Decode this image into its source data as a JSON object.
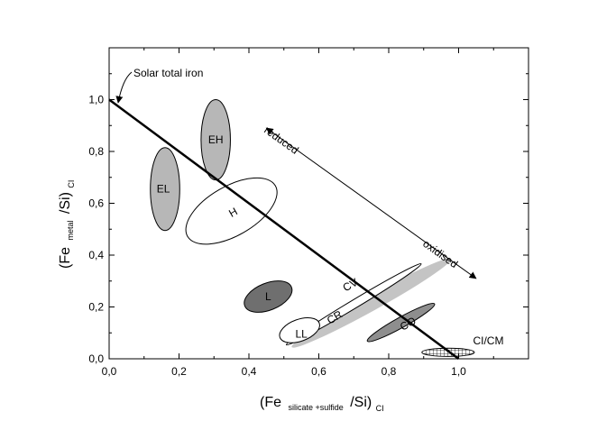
{
  "chart_data": {
    "type": "scatter",
    "xlabel": {
      "main": "(Fe",
      "sub": "silicate +sulfide",
      "mid": "/Si)",
      "tail": "CI"
    },
    "ylabel": {
      "main": "(Fe",
      "sub": "metal",
      "mid": "/Si)",
      "tail": "CI"
    },
    "xlim": [
      0.0,
      1.2
    ],
    "ylim": [
      0.0,
      1.2
    ],
    "x_ticks": [
      0.0,
      0.2,
      0.4,
      0.6,
      0.8,
      1.0
    ],
    "y_ticks": [
      0.0,
      0.2,
      0.4,
      0.6,
      0.8,
      1.0
    ],
    "x_tick_labels": [
      "0,0",
      "0,2",
      "0,4",
      "0,6",
      "0,8",
      "1,0"
    ],
    "y_tick_labels": [
      "0,0",
      "0,2",
      "0,4",
      "0,6",
      "0,8",
      "1,0"
    ],
    "grid": false,
    "reference_line": {
      "name": "Solar total iron",
      "from": [
        0.0,
        1.0
      ],
      "to": [
        1.0,
        0.0
      ]
    },
    "arrow": {
      "from": [
        0.45,
        0.89
      ],
      "to": [
        1.05,
        0.31
      ],
      "start_label": "reduced",
      "end_label": "oxidised"
    },
    "groups": [
      {
        "label": "EH",
        "cx": 0.305,
        "cy": 0.845,
        "rx": 0.042,
        "ry": 0.155,
        "angle": 0,
        "fill": "#b7b7b7",
        "stroke": "#000000"
      },
      {
        "label": "EL",
        "cx": 0.16,
        "cy": 0.655,
        "rx": 0.042,
        "ry": 0.16,
        "angle": 0,
        "fill": "#b7b7b7",
        "stroke": "#000000"
      },
      {
        "label": "H",
        "cx": 0.35,
        "cy": 0.57,
        "rx": 0.145,
        "ry": 0.095,
        "angle": -30,
        "fill": "#ffffff",
        "stroke": "#000000"
      },
      {
        "label": "L",
        "cx": 0.455,
        "cy": 0.24,
        "rx": 0.072,
        "ry": 0.052,
        "angle": -22,
        "fill": "#6f6f6f",
        "stroke": "#000000"
      },
      {
        "label": "LL",
        "cx": 0.545,
        "cy": 0.11,
        "rx": 0.06,
        "ry": 0.042,
        "angle": -20,
        "fill": "#ffffff",
        "stroke": "#000000"
      },
      {
        "label": "CR",
        "cx": 0.7,
        "cy": 0.21,
        "rx": 0.225,
        "ry": 0.016,
        "angle": -31,
        "fill": "#ffffff",
        "stroke": "#000000"
      },
      {
        "label": "CV",
        "cx": 0.75,
        "cy": 0.215,
        "rx": 0.26,
        "ry": 0.03,
        "angle": -29,
        "fill": "#c4c4c4",
        "stroke": "none"
      },
      {
        "label": "CO",
        "cx": 0.835,
        "cy": 0.14,
        "rx": 0.11,
        "ry": 0.02,
        "angle": -29,
        "fill": "#8e8e8e",
        "stroke": "#000000"
      },
      {
        "label": "CI/CM",
        "cx": 0.97,
        "cy": 0.025,
        "rx": 0.075,
        "ry": 0.016,
        "angle": 0,
        "fill": "hatch",
        "stroke": "#000000"
      }
    ],
    "label_positions": {
      "EH": [
        0.305,
        0.845
      ],
      "EL": [
        0.155,
        0.655
      ],
      "H": [
        0.355,
        0.565
      ],
      "L": [
        0.455,
        0.24
      ],
      "LL": [
        0.55,
        0.095
      ],
      "CR": [
        0.645,
        0.16
      ],
      "CV": [
        0.69,
        0.285
      ],
      "CO": [
        0.855,
        0.135
      ],
      "CI/CM": [
        1.085,
        0.07
      ]
    }
  }
}
